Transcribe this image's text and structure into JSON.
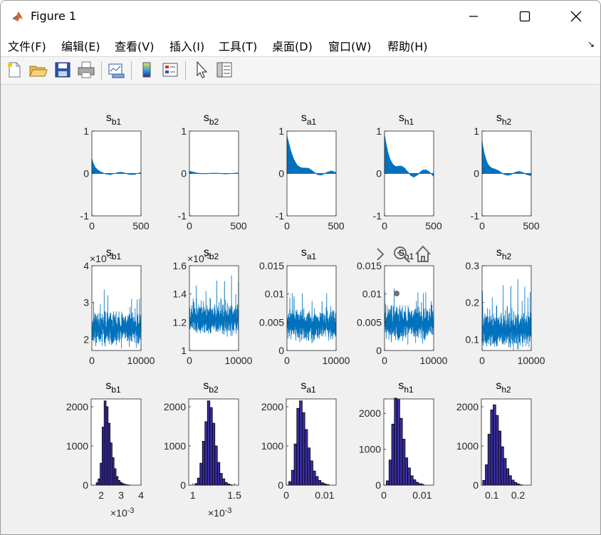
{
  "window": {
    "title": "Figure 1"
  },
  "menu": [
    "文件(F)",
    "编辑(E)",
    "查看(V)",
    "插入(I)",
    "工具(T)",
    "桌面(D)",
    "窗口(W)",
    "帮助(H)"
  ],
  "toolbar": {
    "icons": [
      "new-figure-icon",
      "open-file-icon",
      "save-icon",
      "print-icon",
      "link-plot-icon",
      "insert-colorbar-icon",
      "insert-legend-icon",
      "edit-plot-arrow-icon",
      "property-inspector-icon"
    ]
  },
  "chart_data": [
    {
      "type": "line",
      "row": 1,
      "title_base": "s",
      "title_sub": "b1",
      "xlim": [
        0,
        500
      ],
      "ylim": [
        -1,
        1
      ],
      "xticks": [
        "0",
        "500"
      ],
      "yticks": [
        "-1",
        "0",
        "1"
      ],
      "description": "autocorrelation",
      "lag0": 0.35,
      "decay": 0.03,
      "tail": 0.03
    },
    {
      "type": "line",
      "row": 1,
      "title_base": "s",
      "title_sub": "b2",
      "xlim": [
        0,
        500
      ],
      "ylim": [
        -1,
        1
      ],
      "xticks": [
        "0",
        "500"
      ],
      "yticks": [
        "-1",
        "0",
        "1"
      ],
      "lag0": 0.05,
      "decay": 0.02,
      "tail": 0.01
    },
    {
      "type": "line",
      "row": 1,
      "title_base": "s",
      "title_sub": "a1",
      "xlim": [
        0,
        500
      ],
      "ylim": [
        -1,
        1
      ],
      "xticks": [
        "0",
        "500"
      ],
      "yticks": [
        "-1",
        "0",
        "1"
      ],
      "lag0": 0.85,
      "decay": 0.012,
      "tail": 0.06
    },
    {
      "type": "line",
      "row": 1,
      "title_base": "s",
      "title_sub": "h1",
      "xlim": [
        0,
        500
      ],
      "ylim": [
        -1,
        1
      ],
      "xticks": [
        "0",
        "500"
      ],
      "yticks": [
        "-1",
        "0",
        "1"
      ],
      "lag0": 0.9,
      "decay": 0.014,
      "tail": 0.1
    },
    {
      "type": "line",
      "row": 1,
      "title_base": "s",
      "title_sub": "h2",
      "xlim": [
        0,
        500
      ],
      "ylim": [
        -1,
        1
      ],
      "xticks": [
        "0",
        "500"
      ],
      "yticks": [
        "-1",
        "0",
        "1"
      ],
      "lag0": 0.8,
      "decay": 0.02,
      "tail": 0.05
    },
    {
      "type": "line",
      "row": 2,
      "title_base": "s",
      "title_sub": "b1",
      "xlim": [
        0,
        10000
      ],
      "ylim": [
        1.7,
        4
      ],
      "xticks": [
        "0",
        "10000"
      ],
      "yticks": [
        "2",
        "3",
        "4"
      ],
      "exponent": "×10-3",
      "mean": 2.3,
      "spread": 0.35
    },
    {
      "type": "line",
      "row": 2,
      "title_base": "s",
      "title_sub": "b2",
      "xlim": [
        0,
        10000
      ],
      "ylim": [
        1,
        1.6
      ],
      "xticks": [
        "0",
        "10000"
      ],
      "yticks": [
        "1",
        "1.2",
        "1.4",
        "1.6"
      ],
      "exponent": "×10-3",
      "mean": 1.22,
      "spread": 0.09
    },
    {
      "type": "line",
      "row": 2,
      "title_base": "s",
      "title_sub": "a1",
      "xlim": [
        0,
        10000
      ],
      "ylim": [
        0,
        0.015
      ],
      "xticks": [
        "0",
        "10000"
      ],
      "yticks": [
        "0",
        "0.005",
        "0.01",
        "0.015"
      ],
      "mean": 0.0045,
      "spread": 0.0022
    },
    {
      "type": "line",
      "row": 2,
      "title_base": "s",
      "title_sub": "h1",
      "xlim": [
        0,
        10000
      ],
      "ylim": [
        0,
        0.015
      ],
      "xticks": [
        "0",
        "10000"
      ],
      "yticks": [
        "0",
        "0.005",
        "0.01",
        "0.015"
      ],
      "mean": 0.0048,
      "spread": 0.0024
    },
    {
      "type": "line",
      "row": 2,
      "title_base": "s",
      "title_sub": "h2",
      "xlim": [
        0,
        10000
      ],
      "ylim": [
        0.07,
        0.3
      ],
      "xticks": [
        "0",
        "10000"
      ],
      "yticks": [
        "0.1",
        "0.2",
        "0.3"
      ],
      "mean": 0.125,
      "spread": 0.04
    },
    {
      "type": "bar",
      "row": 3,
      "title_base": "s",
      "title_sub": "b1",
      "xlim": [
        1.5,
        4
      ],
      "ylim": [
        0,
        2200
      ],
      "xticks": [
        "2",
        "3",
        "4"
      ],
      "yticks": [
        "0",
        "1000",
        "2000"
      ],
      "exponent": "×10-3",
      "bins": [
        1.8,
        1.9,
        2.0,
        2.1,
        2.2,
        2.3,
        2.4,
        2.5,
        2.6,
        2.7,
        2.8,
        2.9,
        3.0,
        3.1,
        3.2,
        3.3,
        3.4
      ],
      "values": [
        60,
        160,
        560,
        1480,
        2150,
        2000,
        1580,
        1080,
        700,
        420,
        220,
        120,
        70,
        40,
        20,
        10,
        5
      ]
    },
    {
      "type": "bar",
      "row": 3,
      "title_base": "s",
      "title_sub": "b2",
      "xlim": [
        0.95,
        1.55
      ],
      "ylim": [
        0,
        2200
      ],
      "xticks": [
        "1",
        "1.5"
      ],
      "yticks": [
        "0",
        "1000",
        "2000"
      ],
      "exponent": "×10-3",
      "bins": [
        1.04,
        1.07,
        1.1,
        1.13,
        1.16,
        1.19,
        1.22,
        1.25,
        1.28,
        1.31,
        1.34,
        1.37,
        1.4,
        1.43,
        1.46
      ],
      "values": [
        40,
        180,
        560,
        1120,
        1620,
        2150,
        1980,
        1580,
        1000,
        580,
        300,
        160,
        70,
        30,
        10
      ]
    },
    {
      "type": "bar",
      "row": 3,
      "title_base": "s",
      "title_sub": "a1",
      "xlim": [
        0,
        0.013
      ],
      "ylim": [
        0,
        2200
      ],
      "xticks": [
        "0",
        "0.01"
      ],
      "yticks": [
        "0",
        "1000",
        "2000"
      ],
      "bins": [
        0.001,
        0.0017,
        0.0024,
        0.0031,
        0.0038,
        0.0045,
        0.0052,
        0.0059,
        0.0066,
        0.0073,
        0.008,
        0.0087,
        0.0094,
        0.0101,
        0.0108
      ],
      "values": [
        90,
        380,
        1050,
        1960,
        2150,
        1850,
        1420,
        950,
        620,
        360,
        220,
        120,
        60,
        30,
        15
      ]
    },
    {
      "type": "bar",
      "row": 3,
      "title_base": "s",
      "title_sub": "h1",
      "xlim": [
        0,
        0.013
      ],
      "ylim": [
        0,
        2400
      ],
      "xticks": [
        "0",
        "0.01"
      ],
      "yticks": [
        "0",
        "1000",
        "2000"
      ],
      "bins": [
        0.001,
        0.0017,
        0.0024,
        0.0031,
        0.0038,
        0.0045,
        0.0052,
        0.0059,
        0.0066,
        0.0073,
        0.008,
        0.0087,
        0.0094,
        0.0101
      ],
      "values": [
        120,
        700,
        1700,
        2420,
        2380,
        1860,
        1280,
        760,
        480,
        260,
        150,
        80,
        40,
        20
      ]
    },
    {
      "type": "bar",
      "row": 3,
      "title_base": "s",
      "title_sub": "h2",
      "xlim": [
        0.06,
        0.25
      ],
      "ylim": [
        0,
        2200
      ],
      "xticks": [
        "0.1",
        "0.2"
      ],
      "yticks": [
        "0",
        "1000",
        "2000"
      ],
      "bins": [
        0.07,
        0.08,
        0.09,
        0.1,
        0.11,
        0.12,
        0.13,
        0.14,
        0.15,
        0.16,
        0.17,
        0.18,
        0.19,
        0.2,
        0.21
      ],
      "values": [
        120,
        520,
        1300,
        1920,
        2050,
        1780,
        1380,
        980,
        680,
        420,
        240,
        130,
        70,
        30,
        10
      ]
    }
  ],
  "axes_toolbar": {
    "icons": [
      "expand-arrow-icon",
      "zoom-out-icon",
      "home-icon"
    ]
  },
  "colors": {
    "line": "#0072BD",
    "hist_fill": "#3A2EA0",
    "hist_edge": "#000000",
    "axes_bg": "#ffffff",
    "figure_bg": "#f0f0f0",
    "datatip": "#707070"
  }
}
